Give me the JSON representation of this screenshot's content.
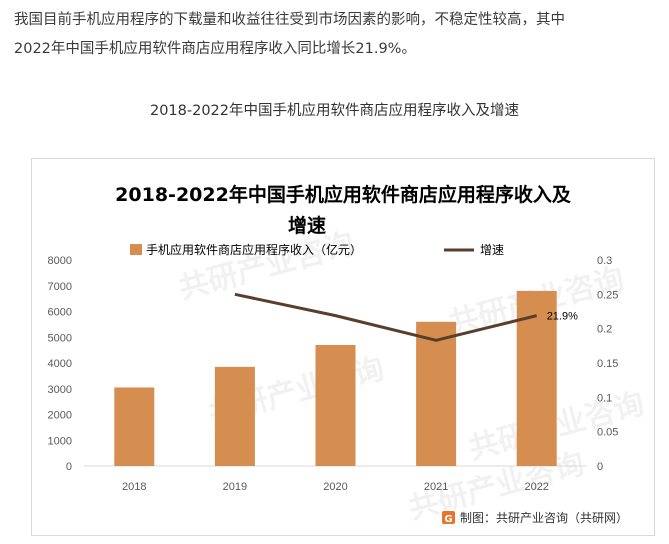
{
  "article": {
    "intro_line1": "我国目前手机应用程序的下载量和收益往往受到市场因素的影响，不稳定性较高，其中",
    "intro_line2": "2022年中国手机应用软件商店应用程序收入同比增长21.9%。",
    "figure_caption": "2018-2022年中国手机应用软件商店应用程序收入及增速"
  },
  "chart_data": {
    "type": "bar",
    "title_lines": [
      "2018-2022年中国手机应用软件商店应用程序收入及",
      "增速"
    ],
    "categories": [
      "2018",
      "2019",
      "2020",
      "2021",
      "2022"
    ],
    "series": [
      {
        "name": "手机应用软件商店应用程序收入（亿元）",
        "type": "bar",
        "axis": "left",
        "color": "#d58e4f",
        "values": [
          3050,
          3850,
          4700,
          5600,
          6800
        ]
      },
      {
        "name": "增速",
        "type": "line",
        "axis": "right",
        "color": "#5a3e2b",
        "values": [
          null,
          0.25,
          0.219,
          0.183,
          0.219
        ]
      }
    ],
    "y_left": {
      "min": 0,
      "max": 8000,
      "ticks": [
        "0",
        "1000",
        "2000",
        "3000",
        "4000",
        "5000",
        "6000",
        "7000",
        "8000"
      ]
    },
    "y_right": {
      "min": 0,
      "max": 0.3,
      "ticks": [
        "0",
        "0.05",
        "0.1",
        "0.15",
        "0.2",
        "0.25",
        "0.3"
      ]
    },
    "annotations": [
      {
        "category": "2022",
        "series": "增速",
        "text": "21.9%"
      }
    ],
    "legend_position": "top",
    "grid": false
  },
  "source_note": "制图：共研产业咨询（共研网）",
  "watermark_text": "共研产业咨询"
}
